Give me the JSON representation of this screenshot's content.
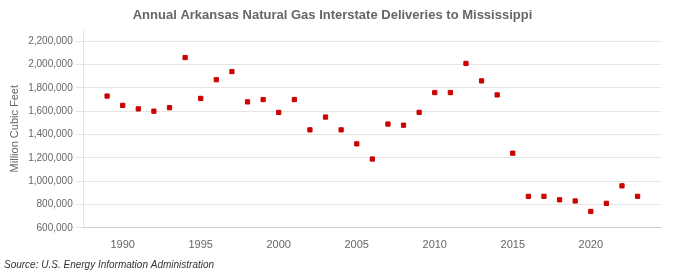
{
  "chart_data": {
    "type": "scatter",
    "title": "Annual Arkansas Natural Gas Interstate Deliveries to Mississippi",
    "ylabel": "Million Cubic Feet",
    "annotations": [
      "Source: U.S. Energy Information Administration"
    ],
    "x": [
      1989,
      1990,
      1991,
      1992,
      1993,
      1994,
      1995,
      1996,
      1997,
      1998,
      1999,
      2000,
      2001,
      2002,
      2003,
      2004,
      2005,
      2006,
      2007,
      2008,
      2009,
      2010,
      2011,
      2012,
      2013,
      2014,
      2015,
      2016,
      2017,
      2018,
      2019,
      2020,
      2021,
      2022,
      2023
    ],
    "values": [
      1730000,
      1650000,
      1620000,
      1600000,
      1630000,
      2060000,
      1710000,
      1870000,
      1940000,
      1680000,
      1700000,
      1590000,
      1700000,
      1440000,
      1550000,
      1440000,
      1320000,
      1190000,
      1490000,
      1480000,
      1590000,
      1760000,
      1760000,
      2010000,
      1860000,
      1740000,
      1240000,
      870000,
      870000,
      840000,
      830000,
      740000,
      810000,
      960000,
      870000
    ],
    "color": "#cc0000",
    "marker": "square",
    "xlim": [
      1987.5,
      2024.5
    ],
    "xticks": [
      1990,
      1995,
      2000,
      2005,
      2010,
      2015,
      2020
    ],
    "ylim": [
      600000,
      2300000
    ],
    "yticks": [
      {
        "value": 600000,
        "label": "600,000"
      },
      {
        "value": 800000,
        "label": "800,000"
      },
      {
        "value": 1000000,
        "label": "1,000,000"
      },
      {
        "value": 1200000,
        "label": "1,200,000"
      },
      {
        "value": 1400000,
        "label": "1,400,000"
      },
      {
        "value": 1600000,
        "label": "1,600,000"
      },
      {
        "value": 1800000,
        "label": "1,800,000"
      },
      {
        "value": 2000000,
        "label": "2,000,000"
      },
      {
        "value": 2200000,
        "label": "2,200,000"
      }
    ],
    "grid": "y"
  }
}
